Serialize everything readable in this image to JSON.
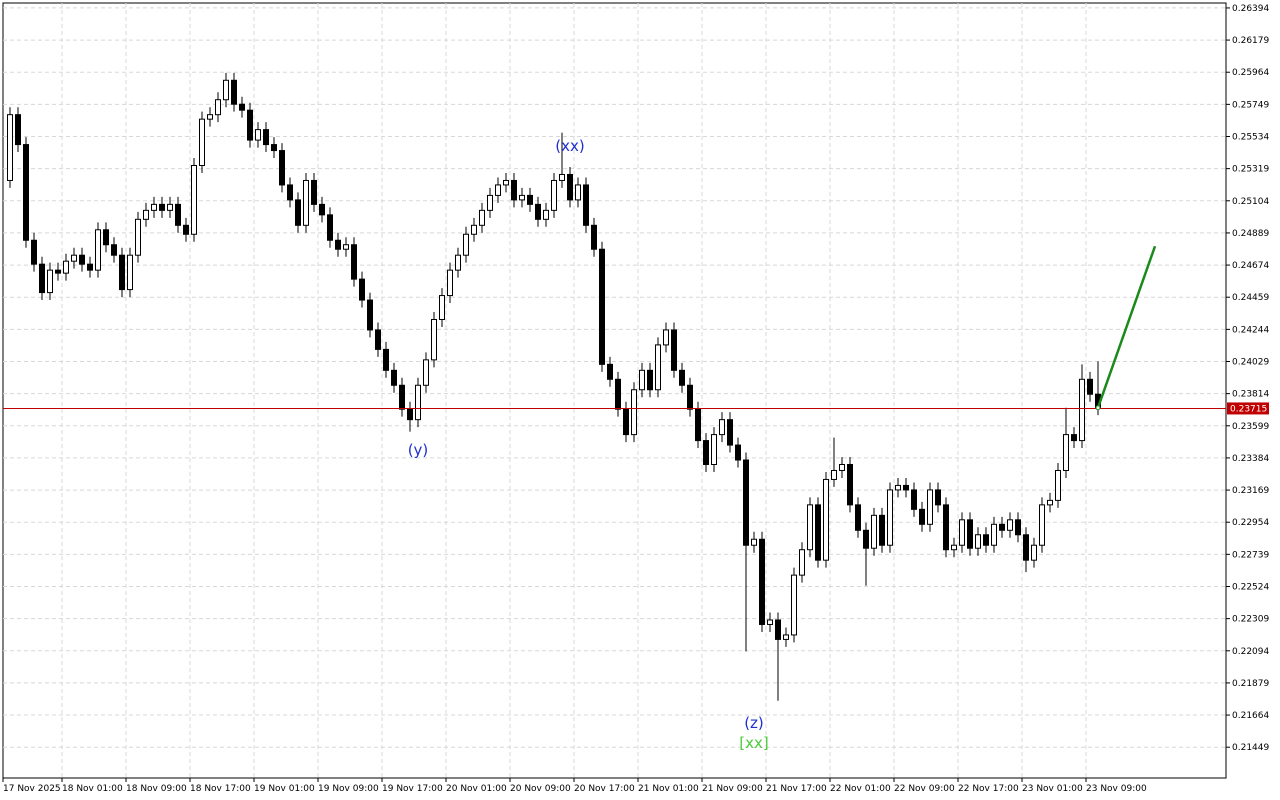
{
  "chart_data": {
    "type": "candlestick",
    "up_color": "#ffffff",
    "down_color": "#000000",
    "outline_color": "#000000",
    "grid": true,
    "ylim": [
      0.21243,
      0.26427
    ],
    "yticks": [
      0.26394,
      0.26179,
      0.25964,
      0.25749,
      0.25534,
      0.25319,
      0.25104,
      0.24889,
      0.24674,
      0.24459,
      0.24244,
      0.24029,
      0.23814,
      0.23599,
      0.23384,
      0.23169,
      0.22954,
      0.22739,
      0.22524,
      0.22309,
      0.22094,
      0.21879,
      0.21664,
      0.21449
    ],
    "xtick_labels": [
      "17 Nov 2025",
      "18 Nov 01:00",
      "18 Nov 09:00",
      "18 Nov 17:00",
      "19 Nov 01:00",
      "19 Nov 09:00",
      "19 Nov 17:00",
      "20 Nov 01:00",
      "20 Nov 09:00",
      "20 Nov 17:00",
      "21 Nov 01:00",
      "21 Nov 09:00",
      "21 Nov 17:00",
      "22 Nov 01:00",
      "22 Nov 09:00",
      "22 Nov 17:00",
      "23 Nov 01:00",
      "23 Nov 09:00"
    ],
    "last_price": {
      "value": 0.23715,
      "color": "#c00000"
    },
    "projection": {
      "color": "#1a8a1a",
      "values": [
        0.2372,
        0.248
      ]
    },
    "annotations": [
      {
        "text": "(xx)",
        "color": "#1f2fd0"
      },
      {
        "text": "(y)",
        "color": "#1f2fd0"
      },
      {
        "text": "(z)",
        "color": "#1f2fd0"
      },
      {
        "text": "[xx]",
        "color": "#4ccc3a"
      }
    ],
    "ohlc": [
      [
        0.2524,
        0.2573,
        0.2519,
        0.2568
      ],
      [
        0.2568,
        0.2573,
        0.2543,
        0.2548
      ],
      [
        0.2548,
        0.2553,
        0.2479,
        0.2484
      ],
      [
        0.2484,
        0.2489,
        0.2463,
        0.2468
      ],
      [
        0.2468,
        0.2473,
        0.2444,
        0.2449
      ],
      [
        0.2449,
        0.2469,
        0.2444,
        0.2464
      ],
      [
        0.2464,
        0.2469,
        0.2457,
        0.2462
      ],
      [
        0.2462,
        0.2475,
        0.2457,
        0.247
      ],
      [
        0.247,
        0.2479,
        0.2465,
        0.2474
      ],
      [
        0.2474,
        0.2479,
        0.2463,
        0.2468
      ],
      [
        0.2468,
        0.2473,
        0.2459,
        0.2464
      ],
      [
        0.2464,
        0.2496,
        0.2459,
        0.2491
      ],
      [
        0.2491,
        0.2496,
        0.2476,
        0.2481
      ],
      [
        0.2481,
        0.2486,
        0.2469,
        0.2474
      ],
      [
        0.2474,
        0.2479,
        0.2446,
        0.2451
      ],
      [
        0.2451,
        0.2479,
        0.2446,
        0.2474
      ],
      [
        0.2474,
        0.2503,
        0.2469,
        0.2498
      ],
      [
        0.2498,
        0.2509,
        0.2493,
        0.2504
      ],
      [
        0.2504,
        0.2513,
        0.2499,
        0.2508
      ],
      [
        0.2508,
        0.2513,
        0.2499,
        0.2504
      ],
      [
        0.2504,
        0.2513,
        0.2499,
        0.2508
      ],
      [
        0.2508,
        0.2513,
        0.2489,
        0.2494
      ],
      [
        0.2494,
        0.2499,
        0.2483,
        0.2488
      ],
      [
        0.2488,
        0.2539,
        0.2483,
        0.2534
      ],
      [
        0.2534,
        0.257,
        0.2529,
        0.2565
      ],
      [
        0.2565,
        0.2573,
        0.256,
        0.2568
      ],
      [
        0.2568,
        0.2583,
        0.2563,
        0.2578
      ],
      [
        0.2578,
        0.2596,
        0.2573,
        0.2591
      ],
      [
        0.2591,
        0.2596,
        0.257,
        0.2575
      ],
      [
        0.2575,
        0.258,
        0.2566,
        0.2571
      ],
      [
        0.2571,
        0.2576,
        0.2546,
        0.2551
      ],
      [
        0.2551,
        0.2563,
        0.2546,
        0.2558
      ],
      [
        0.2558,
        0.2563,
        0.2543,
        0.2548
      ],
      [
        0.2548,
        0.2553,
        0.2539,
        0.2544
      ],
      [
        0.2544,
        0.2549,
        0.2516,
        0.2521
      ],
      [
        0.2521,
        0.2526,
        0.2506,
        0.2511
      ],
      [
        0.2511,
        0.2516,
        0.2489,
        0.2494
      ],
      [
        0.2494,
        0.2529,
        0.2489,
        0.2524
      ],
      [
        0.2524,
        0.2529,
        0.2503,
        0.2508
      ],
      [
        0.2508,
        0.2513,
        0.2496,
        0.2501
      ],
      [
        0.2501,
        0.2506,
        0.2479,
        0.2484
      ],
      [
        0.2484,
        0.2489,
        0.2473,
        0.2478
      ],
      [
        0.2478,
        0.2486,
        0.2473,
        0.2481
      ],
      [
        0.2481,
        0.2486,
        0.2453,
        0.2458
      ],
      [
        0.2458,
        0.2463,
        0.2439,
        0.2444
      ],
      [
        0.2444,
        0.2449,
        0.2419,
        0.2424
      ],
      [
        0.2424,
        0.2429,
        0.2406,
        0.2411
      ],
      [
        0.2411,
        0.2416,
        0.2392,
        0.2397
      ],
      [
        0.2397,
        0.2402,
        0.2382,
        0.2387
      ],
      [
        0.2387,
        0.2392,
        0.2366,
        0.2371
      ],
      [
        0.2371,
        0.2376,
        0.2356,
        0.2364
      ],
      [
        0.2364,
        0.2392,
        0.2359,
        0.2387
      ],
      [
        0.2387,
        0.2409,
        0.2382,
        0.2404
      ],
      [
        0.2404,
        0.2436,
        0.2399,
        0.2431
      ],
      [
        0.2431,
        0.2452,
        0.2426,
        0.2447
      ],
      [
        0.2447,
        0.2469,
        0.2442,
        0.2464
      ],
      [
        0.2464,
        0.2479,
        0.2459,
        0.2474
      ],
      [
        0.2474,
        0.2493,
        0.2469,
        0.2488
      ],
      [
        0.2488,
        0.2499,
        0.2483,
        0.2494
      ],
      [
        0.2494,
        0.2509,
        0.2489,
        0.2504
      ],
      [
        0.2504,
        0.2519,
        0.2499,
        0.2514
      ],
      [
        0.2514,
        0.2526,
        0.2509,
        0.2521
      ],
      [
        0.2521,
        0.2529,
        0.2516,
        0.2524
      ],
      [
        0.2524,
        0.2529,
        0.2506,
        0.2511
      ],
      [
        0.2511,
        0.2519,
        0.2506,
        0.2514
      ],
      [
        0.2514,
        0.2519,
        0.2503,
        0.2508
      ],
      [
        0.2508,
        0.2513,
        0.2493,
        0.2498
      ],
      [
        0.2498,
        0.2509,
        0.2493,
        0.2504
      ],
      [
        0.2504,
        0.2529,
        0.2499,
        0.2524
      ],
      [
        0.2524,
        0.2556,
        0.2519,
        0.2528
      ],
      [
        0.2528,
        0.2533,
        0.2506,
        0.2511
      ],
      [
        0.2511,
        0.2526,
        0.2506,
        0.2521
      ],
      [
        0.2521,
        0.2526,
        0.2489,
        0.2494
      ],
      [
        0.2494,
        0.2499,
        0.2473,
        0.2478
      ],
      [
        0.2478,
        0.2483,
        0.2396,
        0.2401
      ],
      [
        0.2401,
        0.2406,
        0.2386,
        0.2391
      ],
      [
        0.2391,
        0.2396,
        0.2366,
        0.2371
      ],
      [
        0.2371,
        0.2376,
        0.2349,
        0.2354
      ],
      [
        0.2354,
        0.2389,
        0.2349,
        0.2384
      ],
      [
        0.2384,
        0.2402,
        0.2379,
        0.2397
      ],
      [
        0.2397,
        0.2402,
        0.2379,
        0.2384
      ],
      [
        0.2384,
        0.2419,
        0.2379,
        0.2414
      ],
      [
        0.2414,
        0.2429,
        0.2409,
        0.2424
      ],
      [
        0.2424,
        0.2429,
        0.2392,
        0.2397
      ],
      [
        0.2397,
        0.2402,
        0.2382,
        0.2387
      ],
      [
        0.2387,
        0.2392,
        0.2366,
        0.2371
      ],
      [
        0.2371,
        0.2376,
        0.2345,
        0.235
      ],
      [
        0.235,
        0.2355,
        0.2329,
        0.2334
      ],
      [
        0.2334,
        0.2359,
        0.2329,
        0.2354
      ],
      [
        0.2354,
        0.2369,
        0.2349,
        0.2364
      ],
      [
        0.2364,
        0.2369,
        0.2342,
        0.2347
      ],
      [
        0.2347,
        0.2352,
        0.2332,
        0.2337
      ],
      [
        0.2337,
        0.2342,
        0.2209,
        0.228
      ],
      [
        0.228,
        0.2289,
        0.2275,
        0.2284
      ],
      [
        0.2284,
        0.2289,
        0.2222,
        0.2227
      ],
      [
        0.2227,
        0.2235,
        0.2222,
        0.223
      ],
      [
        0.223,
        0.2235,
        0.2176,
        0.2217
      ],
      [
        0.2217,
        0.2225,
        0.2212,
        0.222
      ],
      [
        0.222,
        0.2265,
        0.2215,
        0.226
      ],
      [
        0.226,
        0.2282,
        0.2255,
        0.2277
      ],
      [
        0.2277,
        0.2312,
        0.2272,
        0.2307
      ],
      [
        0.2307,
        0.2312,
        0.2265,
        0.227
      ],
      [
        0.227,
        0.2329,
        0.2265,
        0.2324
      ],
      [
        0.2324,
        0.2352,
        0.2319,
        0.233
      ],
      [
        0.233,
        0.2339,
        0.2325,
        0.2334
      ],
      [
        0.2334,
        0.2339,
        0.2302,
        0.2307
      ],
      [
        0.2307,
        0.2312,
        0.2285,
        0.229
      ],
      [
        0.229,
        0.2295,
        0.2253,
        0.2278
      ],
      [
        0.2278,
        0.2305,
        0.2273,
        0.23
      ],
      [
        0.23,
        0.2305,
        0.2275,
        0.228
      ],
      [
        0.228,
        0.2322,
        0.2275,
        0.2317
      ],
      [
        0.2317,
        0.2325,
        0.2312,
        0.232
      ],
      [
        0.232,
        0.2325,
        0.2312,
        0.2317
      ],
      [
        0.2317,
        0.2322,
        0.2299,
        0.2304
      ],
      [
        0.2304,
        0.2309,
        0.2289,
        0.2294
      ],
      [
        0.2294,
        0.2322,
        0.2289,
        0.2317
      ],
      [
        0.2317,
        0.2322,
        0.2302,
        0.2307
      ],
      [
        0.2307,
        0.2312,
        0.2272,
        0.2277
      ],
      [
        0.2277,
        0.2285,
        0.2272,
        0.228
      ],
      [
        0.228,
        0.2302,
        0.2275,
        0.2297
      ],
      [
        0.2297,
        0.2302,
        0.2273,
        0.2278
      ],
      [
        0.2278,
        0.2292,
        0.2273,
        0.2287
      ],
      [
        0.2287,
        0.2292,
        0.2275,
        0.228
      ],
      [
        0.228,
        0.2299,
        0.2275,
        0.2294
      ],
      [
        0.2294,
        0.2299,
        0.2285,
        0.229
      ],
      [
        0.229,
        0.2302,
        0.2285,
        0.2297
      ],
      [
        0.2297,
        0.2302,
        0.2282,
        0.2287
      ],
      [
        0.2287,
        0.2292,
        0.2262,
        0.227
      ],
      [
        0.227,
        0.2285,
        0.2265,
        0.228
      ],
      [
        0.228,
        0.2312,
        0.2275,
        0.2307
      ],
      [
        0.2307,
        0.2315,
        0.2302,
        0.231
      ],
      [
        0.231,
        0.2335,
        0.2305,
        0.233
      ],
      [
        0.233,
        0.2372,
        0.2325,
        0.2354
      ],
      [
        0.2354,
        0.2359,
        0.2345,
        0.235
      ],
      [
        0.235,
        0.2401,
        0.2345,
        0.2391
      ],
      [
        0.2391,
        0.2396,
        0.2376,
        0.2381
      ],
      [
        0.2381,
        0.2403,
        0.2367,
        0.2372
      ]
    ]
  }
}
